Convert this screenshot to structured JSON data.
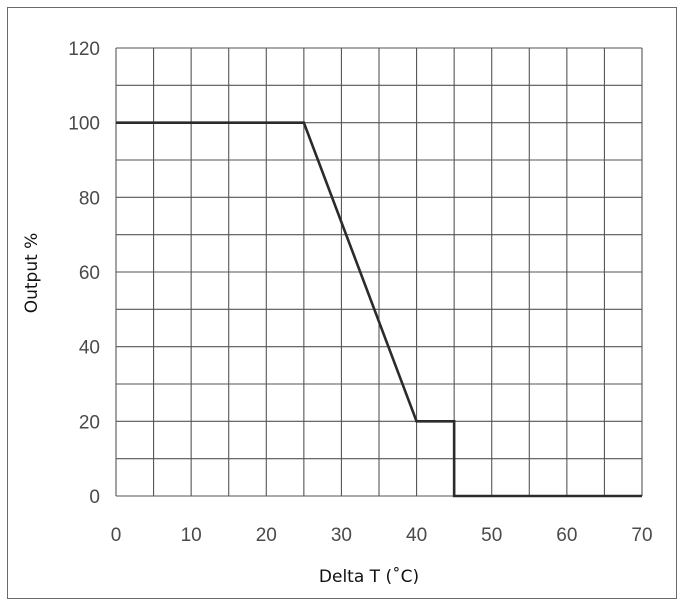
{
  "chart_data": {
    "type": "line",
    "title": "",
    "xlabel": "Delta T (˚C)",
    "ylabel": "Output %",
    "xlim": [
      0,
      70
    ],
    "ylim": [
      0,
      120
    ],
    "x_ticks": [
      "0",
      "10",
      "20",
      "30",
      "40",
      "50",
      "60",
      "70"
    ],
    "y_ticks": [
      "0",
      "20",
      "40",
      "60",
      "80",
      "100",
      "120"
    ],
    "grid": true,
    "legend": "none",
    "series": [
      {
        "x": [
          0,
          25,
          40,
          45,
          45,
          70
        ],
        "y": [
          100,
          100,
          20,
          20,
          0,
          0
        ],
        "color": "#2b2b2b"
      }
    ]
  }
}
